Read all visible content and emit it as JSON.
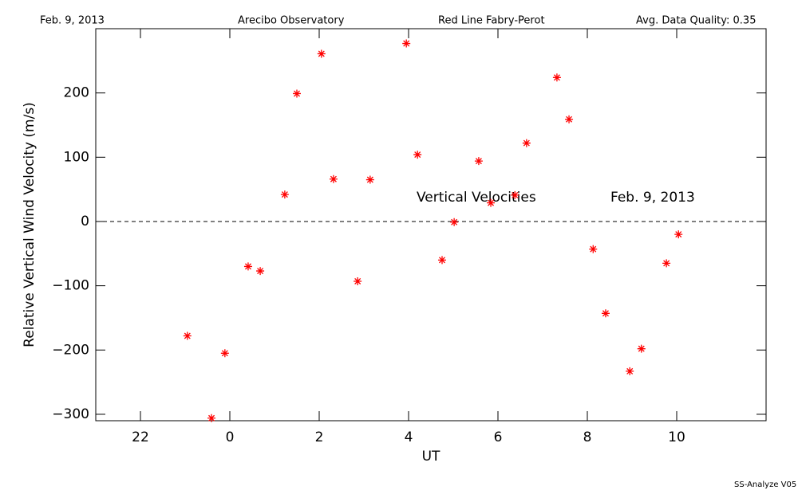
{
  "chart_data": {
    "type": "scatter",
    "header": [
      "Feb. 9, 2013",
      "Arecibo Observatory",
      "Red Line Fabry-Perot",
      "Avg. Data Quality: 0.35"
    ],
    "annotations": [
      "Vertical Velocities",
      "Feb. 9, 2013"
    ],
    "footer": "SS-Analyze V05",
    "x_label": "UT",
    "y_label": "Relative Vertical Wind Velocity (m/s)",
    "xlim": [
      -3,
      12
    ],
    "xticks": [
      {
        "value": -2,
        "label": "22"
      },
      0,
      2,
      4,
      6,
      8,
      10
    ],
    "ylim": [
      -310,
      300
    ],
    "yticks": [
      {
        "value": -300,
        "label": "−300"
      },
      {
        "value": -200,
        "label": "−200"
      },
      {
        "value": -100,
        "label": "−100"
      },
      0,
      100,
      200
    ],
    "zero_line": 0,
    "series": [
      {
        "name": "Vertical Velocities",
        "color": "#ff0000",
        "x": [
          -0.95,
          -0.41,
          -0.11,
          0.41,
          0.68,
          1.23,
          1.5,
          2.05,
          2.32,
          2.86,
          3.14,
          3.95,
          4.2,
          4.75,
          5.02,
          5.57,
          5.84,
          6.38,
          6.64,
          7.32,
          7.59,
          8.13,
          8.41,
          8.95,
          9.21,
          9.77,
          10.04
        ],
        "values": [
          -178,
          -306,
          -205,
          -70,
          -77,
          42,
          199,
          261,
          66,
          -93,
          65,
          277,
          104,
          -60,
          -1,
          94,
          29,
          41,
          122,
          224,
          159,
          -43,
          -143,
          -233,
          -198,
          -65,
          -20
        ]
      }
    ]
  }
}
